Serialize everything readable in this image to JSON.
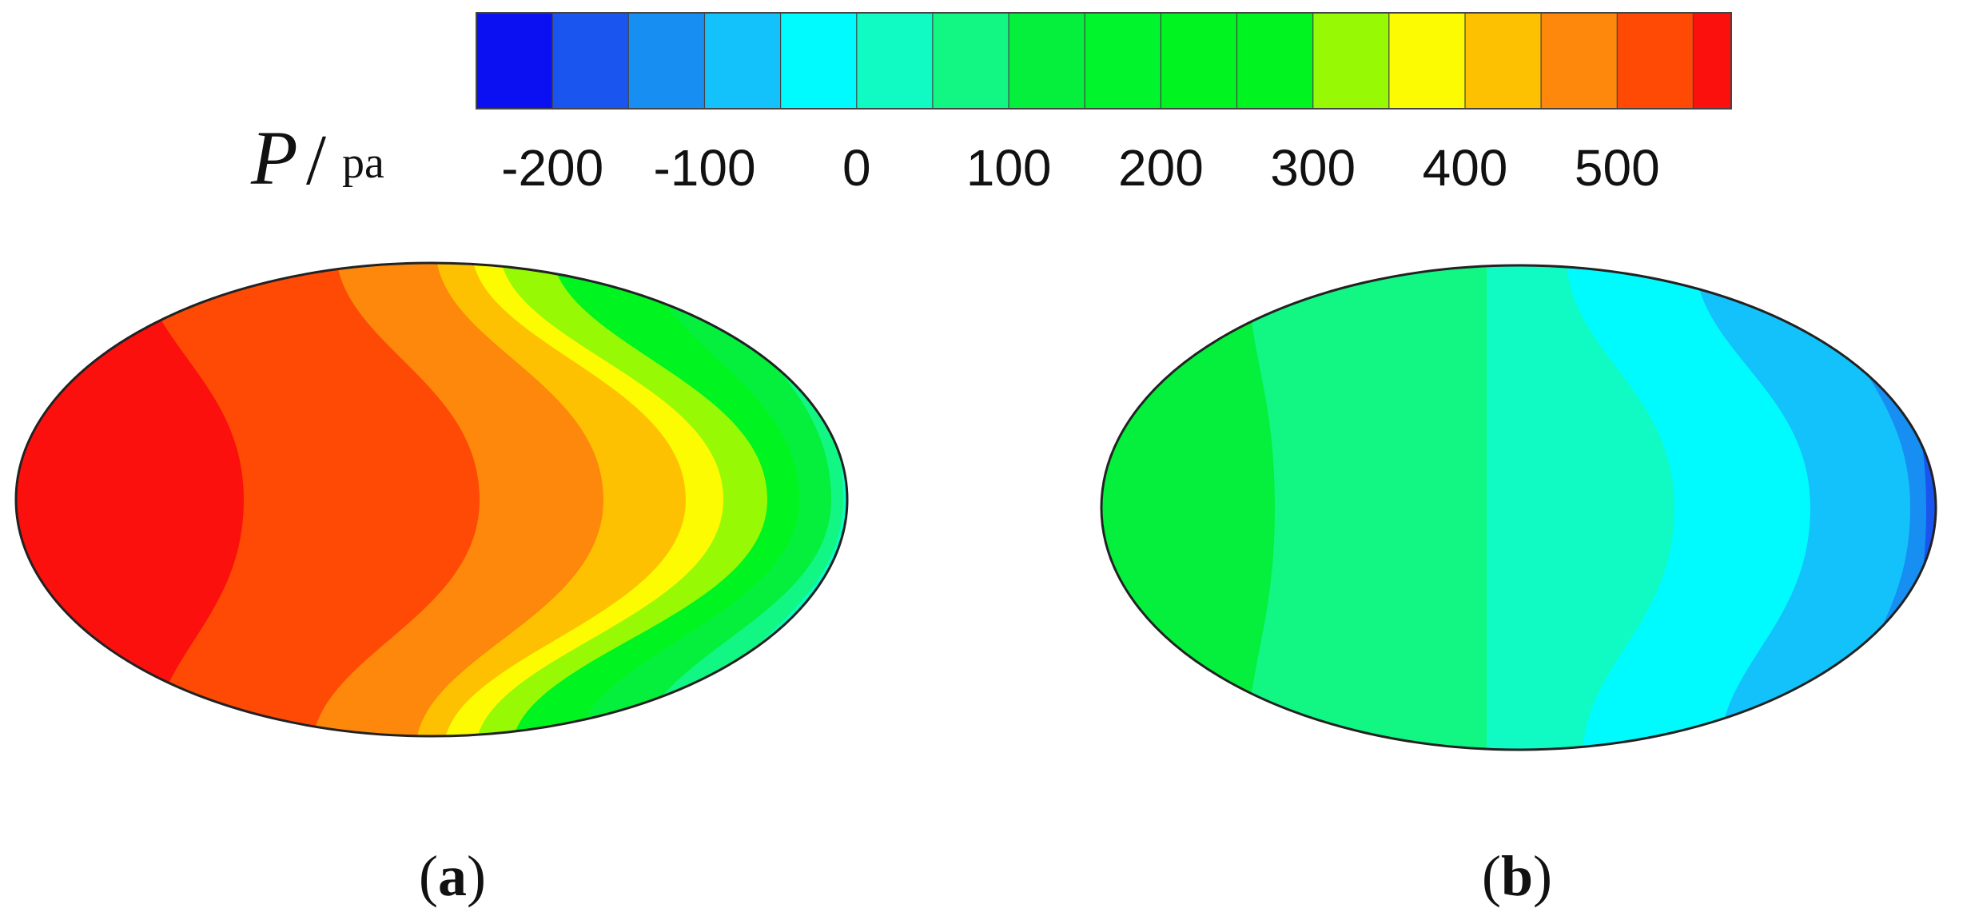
{
  "chart_data": {
    "type": "heatmap",
    "colorbar": {
      "variable": "P",
      "unit": "pa",
      "range": [
        -250,
        575
      ],
      "ticks": [
        -200,
        -100,
        0,
        100,
        200,
        300,
        400,
        500
      ],
      "tick_labels": [
        "-200",
        "-100",
        "0",
        "100",
        "200",
        "300",
        "400",
        "500"
      ],
      "levels": [
        {
          "from": -250,
          "to": -200,
          "color": "#0a10f2"
        },
        {
          "from": -200,
          "to": -150,
          "color": "#1a55f0"
        },
        {
          "from": -150,
          "to": -100,
          "color": "#168ef2"
        },
        {
          "from": -100,
          "to": -50,
          "color": "#13c1fb"
        },
        {
          "from": -50,
          "to": 0,
          "color": "#00fbff"
        },
        {
          "from": 0,
          "to": 50,
          "color": "#0ffbc3"
        },
        {
          "from": 50,
          "to": 100,
          "color": "#12f683"
        },
        {
          "from": 100,
          "to": 150,
          "color": "#04f03c"
        },
        {
          "from": 150,
          "to": 200,
          "color": "#00f52d"
        },
        {
          "from": 200,
          "to": 250,
          "color": "#00f520"
        },
        {
          "from": 250,
          "to": 300,
          "color": "#00f520"
        },
        {
          "from": 300,
          "to": 350,
          "color": "#98f905"
        },
        {
          "from": 350,
          "to": 400,
          "color": "#fdfb01"
        },
        {
          "from": 400,
          "to": 450,
          "color": "#fec102"
        },
        {
          "from": 450,
          "to": 500,
          "color": "#fe880c"
        },
        {
          "from": 500,
          "to": 550,
          "color": "#fe4a05"
        },
        {
          "from": 550,
          "to": 575,
          "color": "#fc100e"
        }
      ]
    },
    "panels": [
      {
        "label": "a",
        "bands_left_to_right": [
          {
            "level": 550,
            "color": "#fc100e"
          },
          {
            "level": 500,
            "color": "#fe4a05"
          },
          {
            "level": 450,
            "color": "#fe880c"
          },
          {
            "level": 400,
            "color": "#fec102"
          },
          {
            "level": 350,
            "color": "#fdfb01"
          },
          {
            "level": 300,
            "color": "#98f905"
          },
          {
            "level": 200,
            "color": "#00f520"
          },
          {
            "level": 100,
            "color": "#04f03c"
          },
          {
            "level": 50,
            "color": "#12f683"
          },
          {
            "level": 0,
            "color": "#0ffbc3"
          },
          {
            "level": -50,
            "color": "#00fbff"
          },
          {
            "level": -100,
            "color": "#13c1fb"
          }
        ]
      },
      {
        "label": "b",
        "bands_left_to_right": [
          {
            "level": 100,
            "color": "#04f03c"
          },
          {
            "level": 50,
            "color": "#12f683"
          },
          {
            "level": 0,
            "color": "#0ffbc3"
          },
          {
            "level": -50,
            "color": "#00fbff"
          },
          {
            "level": -100,
            "color": "#13c1fb"
          },
          {
            "level": -150,
            "color": "#168ef2"
          },
          {
            "level": -200,
            "color": "#1a55f0"
          }
        ]
      }
    ]
  }
}
